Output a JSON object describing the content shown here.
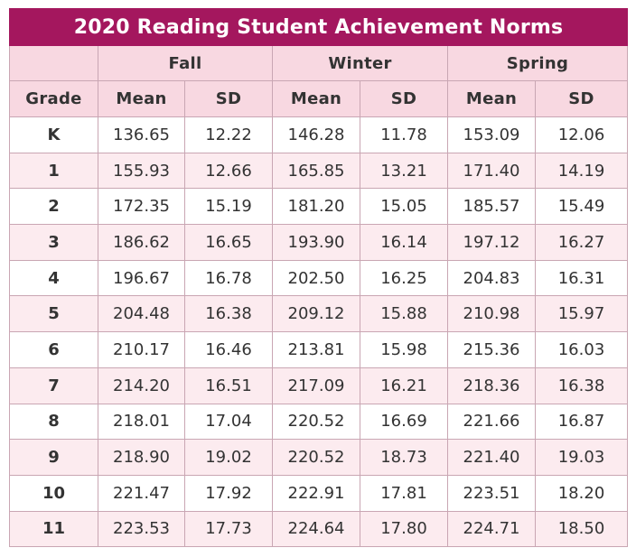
{
  "title": "2020 Reading Student Achievement Norms",
  "seasons": [
    "Fall",
    "Winter",
    "Spring"
  ],
  "column_headers": [
    "Grade",
    "Mean",
    "SD",
    "Mean",
    "SD",
    "Mean",
    "SD"
  ],
  "colors": {
    "title_bg": "#a4175e",
    "header_bg": "#f8d8e1",
    "stripe_bg": "#fcebef",
    "border": "#c9a6b3"
  },
  "chart_data": {
    "type": "table",
    "title": "2020 Reading Student Achievement Norms",
    "columns": [
      "Grade",
      "Fall Mean",
      "Fall SD",
      "Winter Mean",
      "Winter SD",
      "Spring Mean",
      "Spring SD"
    ],
    "rows": [
      [
        "K",
        "136.65",
        "12.22",
        "146.28",
        "11.78",
        "153.09",
        "12.06"
      ],
      [
        "1",
        "155.93",
        "12.66",
        "165.85",
        "13.21",
        "171.40",
        "14.19"
      ],
      [
        "2",
        "172.35",
        "15.19",
        "181.20",
        "15.05",
        "185.57",
        "15.49"
      ],
      [
        "3",
        "186.62",
        "16.65",
        "193.90",
        "16.14",
        "197.12",
        "16.27"
      ],
      [
        "4",
        "196.67",
        "16.78",
        "202.50",
        "16.25",
        "204.83",
        "16.31"
      ],
      [
        "5",
        "204.48",
        "16.38",
        "209.12",
        "15.88",
        "210.98",
        "15.97"
      ],
      [
        "6",
        "210.17",
        "16.46",
        "213.81",
        "15.98",
        "215.36",
        "16.03"
      ],
      [
        "7",
        "214.20",
        "16.51",
        "217.09",
        "16.21",
        "218.36",
        "16.38"
      ],
      [
        "8",
        "218.01",
        "17.04",
        "220.52",
        "16.69",
        "221.66",
        "16.87"
      ],
      [
        "9",
        "218.90",
        "19.02",
        "220.52",
        "18.73",
        "221.40",
        "19.03"
      ],
      [
        "10",
        "221.47",
        "17.92",
        "222.91",
        "17.81",
        "223.51",
        "18.20"
      ],
      [
        "11",
        "223.53",
        "17.73",
        "224.64",
        "17.80",
        "224.71",
        "18.50"
      ]
    ]
  }
}
